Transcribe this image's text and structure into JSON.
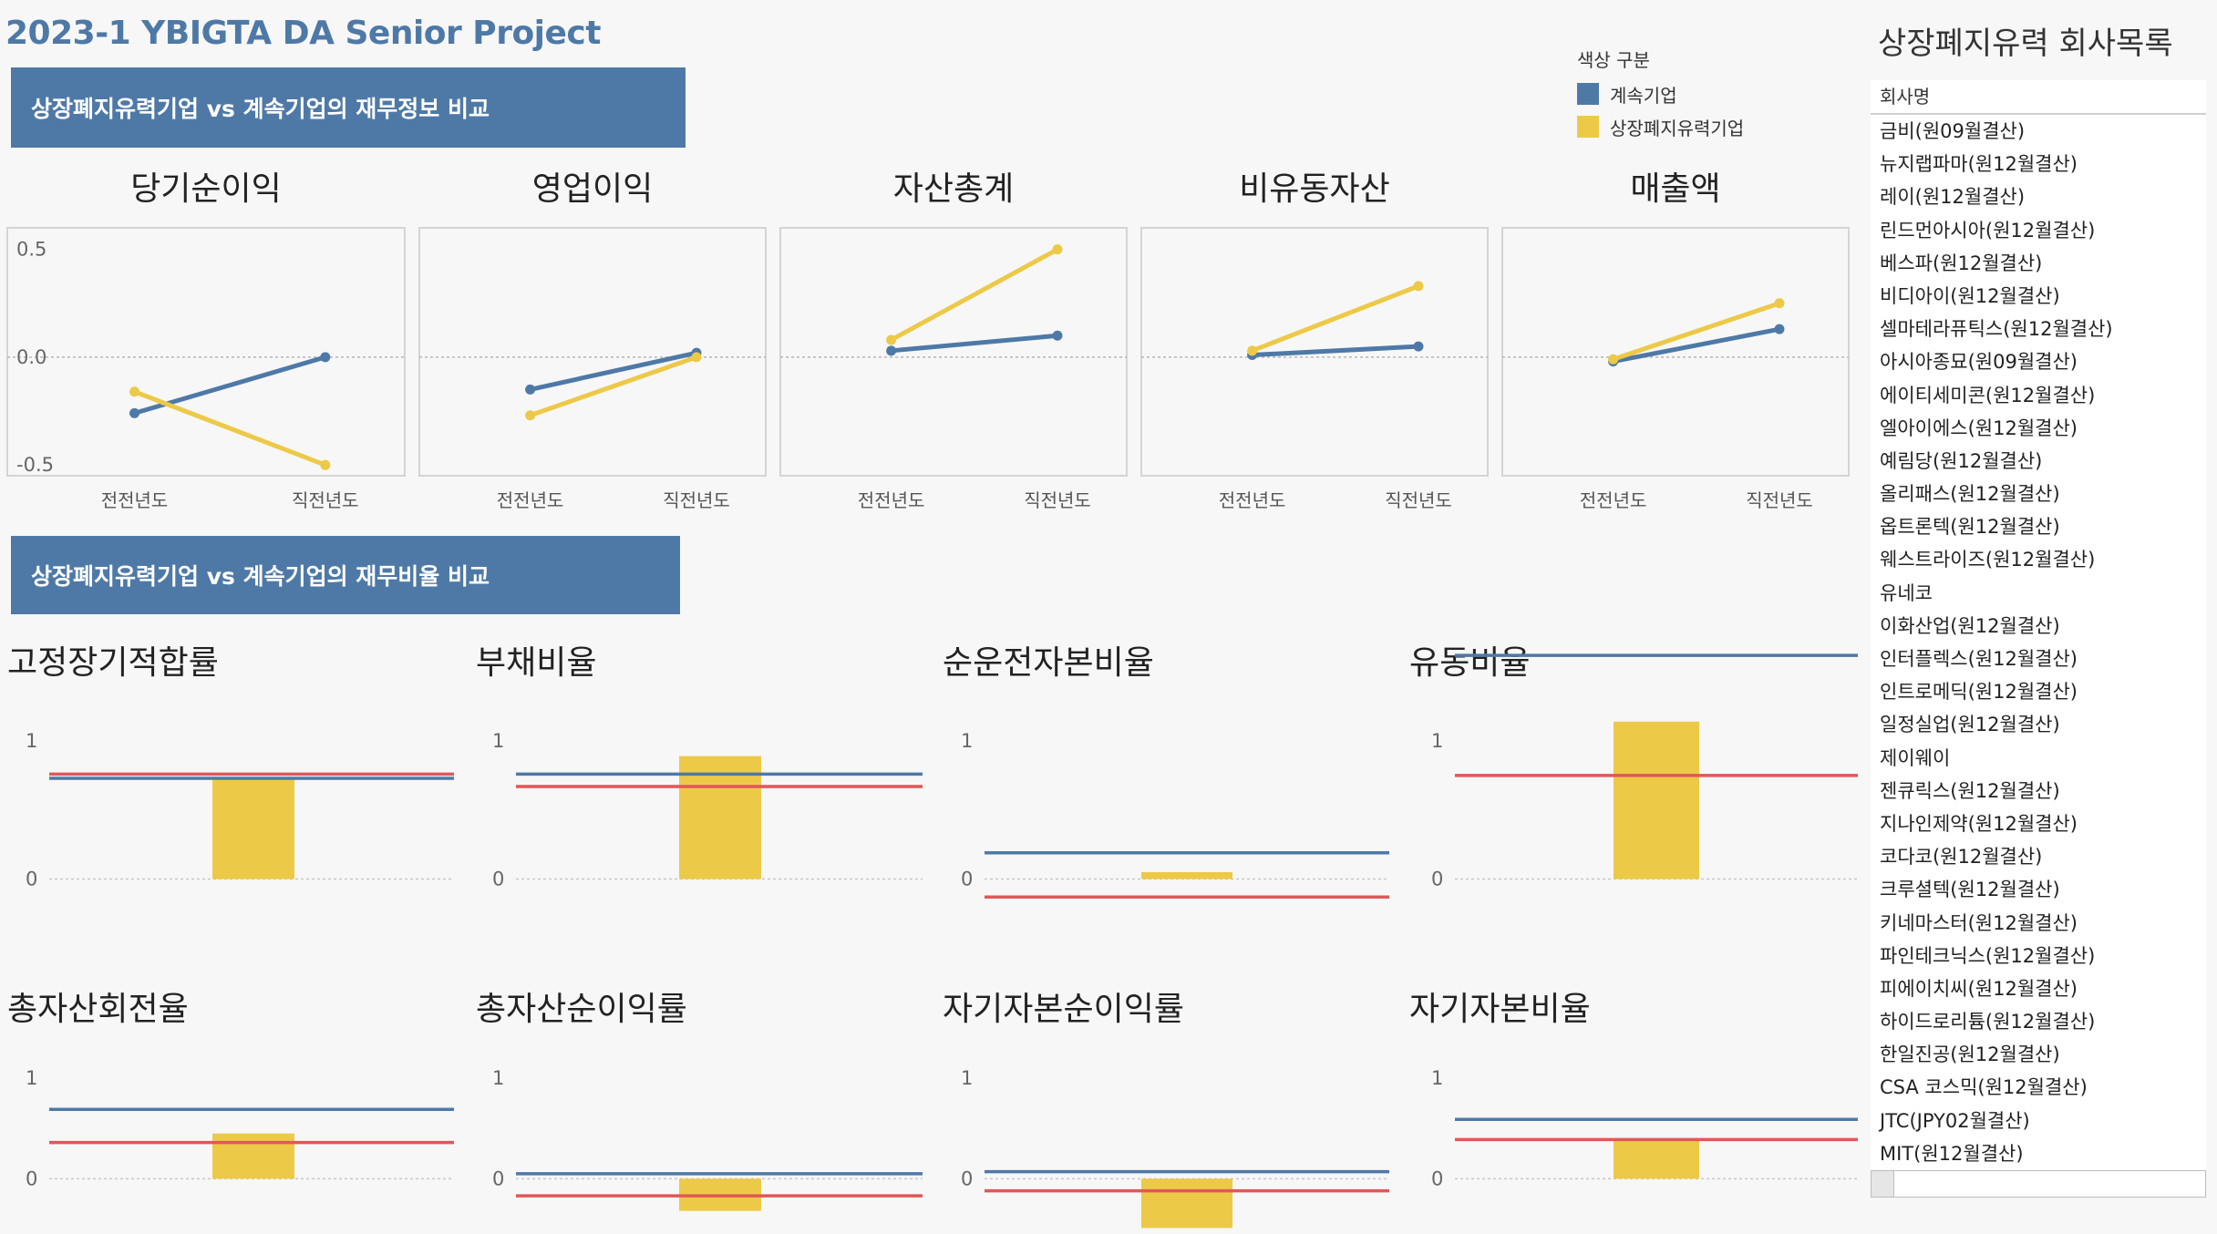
{
  "header": {
    "title": "2023-1 YBIGTA DA Senior Project",
    "banner_info": "상장폐지유력기업 vs 계속기업의 재무정보 비교",
    "banner_ratio": "상장폐지유력기업 vs 계속기업의 재무비율 비교"
  },
  "legend": {
    "title": "색상 구분",
    "items": [
      {
        "label": "계속기업",
        "color": "#4e79a7"
      },
      {
        "label": "상장폐지유력기업",
        "color": "#edc948"
      }
    ]
  },
  "colors": {
    "continuing": "#4e79a7",
    "delisting": "#edc948",
    "reference_red": "#e15759"
  },
  "sidebar": {
    "title": "상장폐지유력 회사목록",
    "header": "회사명",
    "companies": [
      "금비(원09월결산)",
      "뉴지랩파마(원12월결산)",
      "레이(원12월결산)",
      "린드먼아시아(원12월결산)",
      "베스파(원12월결산)",
      "비디아이(원12월결산)",
      "셀마테라퓨틱스(원12월결산)",
      "아시아종묘(원09월결산)",
      "에이티세미콘(원12월결산)",
      "엘아이에스(원12월결산)",
      "예림당(원12월결산)",
      "올리패스(원12월결산)",
      "옵트론텍(원12월결산)",
      "웨스트라이즈(원12월결산)",
      "유네코",
      "이화산업(원12월결산)",
      "인터플렉스(원12월결산)",
      "인트로메딕(원12월결산)",
      "일정실업(원12월결산)",
      "제이웨이",
      "젠큐릭스(원12월결산)",
      "지나인제약(원12월결산)",
      "코다코(원12월결산)",
      "크루셜텍(원12월결산)",
      "키네마스터(원12월결산)",
      "파인테크닉스(원12월결산)",
      "피에이치씨(원12월결산)",
      "하이드로리튬(원12월결산)",
      "한일진공(원12월결산)",
      "CSA 코스믹(원12월결산)",
      "JTC(JPY02월결산)",
      "MIT(원12월결산)"
    ]
  },
  "chart_data": [
    {
      "type": "line",
      "title": "당기순이익",
      "categories": [
        "전전년도",
        "직전년도"
      ],
      "ylim": [
        -0.55,
        0.6
      ],
      "yticks": [
        "0.5",
        "0.0",
        "-0.5"
      ],
      "ytick_values": [
        0.5,
        0.0,
        -0.5
      ],
      "series": [
        {
          "name": "계속기업",
          "values": [
            -0.26,
            0.0
          ]
        },
        {
          "name": "상장폐지유력기업",
          "values": [
            -0.16,
            -0.5
          ]
        }
      ]
    },
    {
      "type": "line",
      "title": "영업이익",
      "categories": [
        "전전년도",
        "직전년도"
      ],
      "ylim": [
        -0.55,
        0.6
      ],
      "series": [
        {
          "name": "계속기업",
          "values": [
            -0.15,
            0.02
          ]
        },
        {
          "name": "상장폐지유력기업",
          "values": [
            -0.27,
            0.0
          ]
        }
      ]
    },
    {
      "type": "line",
      "title": "자산총계",
      "categories": [
        "전전년도",
        "직전년도"
      ],
      "ylim": [
        -0.55,
        0.6
      ],
      "series": [
        {
          "name": "계속기업",
          "values": [
            0.03,
            0.1
          ]
        },
        {
          "name": "상장폐지유력기업",
          "values": [
            0.08,
            0.5
          ]
        }
      ]
    },
    {
      "type": "line",
      "title": "비유동자산",
      "categories": [
        "전전년도",
        "직전년도"
      ],
      "ylim": [
        -0.55,
        0.6
      ],
      "series": [
        {
          "name": "계속기업",
          "values": [
            0.01,
            0.05
          ]
        },
        {
          "name": "상장폐지유력기업",
          "values": [
            0.03,
            0.33
          ]
        }
      ]
    },
    {
      "type": "line",
      "title": "매출액",
      "categories": [
        "전전년도",
        "직전년도"
      ],
      "ylim": [
        -0.55,
        0.6
      ],
      "series": [
        {
          "name": "계속기업",
          "values": [
            -0.02,
            0.13
          ]
        },
        {
          "name": "상장폐지유력기업",
          "values": [
            -0.01,
            0.25
          ]
        }
      ]
    },
    {
      "type": "bar",
      "title": "고정장기적합률",
      "ylim": [
        -0.3,
        1.35
      ],
      "yticks": [
        "1",
        "0"
      ],
      "ytick_values": [
        1,
        0
      ],
      "bar_value": 0.73,
      "continuing_line": 0.73,
      "red_line": 0.76
    },
    {
      "type": "bar",
      "title": "부채비율",
      "ylim": [
        -0.3,
        1.35
      ],
      "yticks": [
        "1",
        "0"
      ],
      "ytick_values": [
        1,
        0
      ],
      "bar_value": 0.89,
      "continuing_line": 0.76,
      "red_line": 0.67
    },
    {
      "type": "bar",
      "title": "순운전자본비율",
      "ylim": [
        -0.3,
        1.35
      ],
      "yticks": [
        "1",
        "0"
      ],
      "ytick_values": [
        1,
        0
      ],
      "bar_value": 0.05,
      "continuing_line": 0.19,
      "red_line": -0.13
    },
    {
      "type": "bar",
      "title": "유동비율",
      "ylim": [
        -0.3,
        1.35
      ],
      "yticks": [
        "1",
        "0"
      ],
      "ytick_values": [
        1,
        0
      ],
      "bar_value": 1.14,
      "continuing_line": 1.62,
      "red_line": 0.75
    },
    {
      "type": "bar",
      "title": "총자산회전율",
      "ylim": [
        -0.55,
        1.3
      ],
      "yticks": [
        "1",
        "0"
      ],
      "ytick_values": [
        1,
        0
      ],
      "bar_value": 0.45,
      "continuing_line": 0.69,
      "red_line": 0.36
    },
    {
      "type": "bar",
      "title": "총자산순이익률",
      "ylim": [
        -0.55,
        1.3
      ],
      "yticks": [
        "1",
        "0"
      ],
      "ytick_values": [
        1,
        0
      ],
      "bar_value": -0.32,
      "continuing_line": 0.05,
      "red_line": -0.17
    },
    {
      "type": "bar",
      "title": "자기자본순이익률",
      "ylim": [
        -0.55,
        1.3
      ],
      "yticks": [
        "1",
        "0"
      ],
      "ytick_values": [
        1,
        0
      ],
      "bar_value": -0.49,
      "continuing_line": 0.07,
      "red_line": -0.12
    },
    {
      "type": "bar",
      "title": "자기자본비율",
      "ylim": [
        -0.55,
        1.3
      ],
      "yticks": [
        "1",
        "0"
      ],
      "ytick_values": [
        1,
        0
      ],
      "bar_value": 0.38,
      "continuing_line": 0.59,
      "red_line": 0.39
    }
  ]
}
